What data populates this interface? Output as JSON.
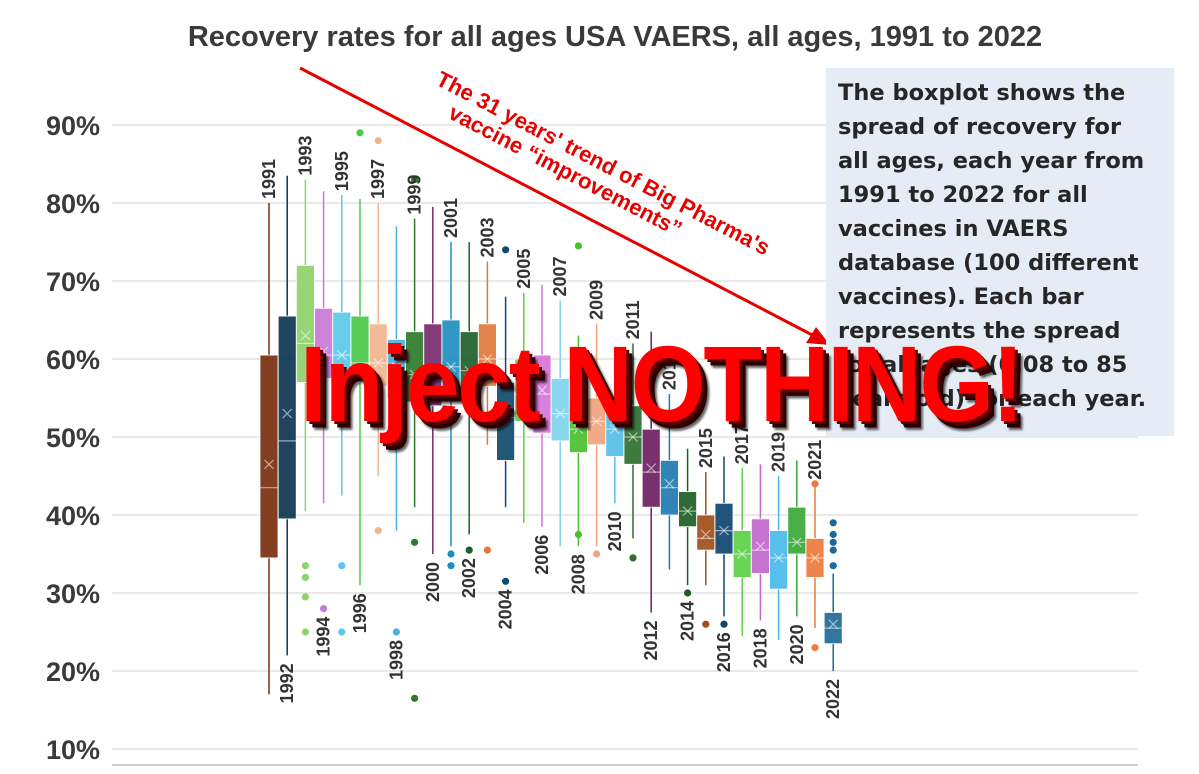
{
  "chart_data": {
    "type": "boxplot",
    "title": "Recovery rates for all ages USA VAERS, all ages,  1991 to 2022",
    "y_unit": "%",
    "ylim": [
      10,
      92
    ],
    "y_ticks": [
      "10%",
      "20%",
      "30%",
      "40%",
      "50%",
      "60%",
      "70%",
      "80%",
      "90%"
    ],
    "grid": true,
    "series": [
      {
        "year": "1991",
        "color": "#7a2e0e",
        "min": 17,
        "q1": 34.5,
        "median": 43.5,
        "mean": 46.5,
        "q3": 60.5,
        "max": 80,
        "outliers": []
      },
      {
        "year": "1992",
        "color": "#0d3550",
        "min": 22,
        "q1": 39.5,
        "median": 49.5,
        "mean": 53,
        "q3": 65.5,
        "max": 83.5,
        "outliers": []
      },
      {
        "year": "1993",
        "color": "#8fd16a",
        "min": 40.5,
        "q1": 57,
        "median": 62,
        "mean": 63,
        "q3": 72,
        "max": 83,
        "outliers": [
          33.5,
          32,
          29.5,
          25
        ]
      },
      {
        "year": "1994",
        "color": "#c77ad6",
        "min": 41.5,
        "q1": 57.5,
        "median": 60.5,
        "mean": 61,
        "q3": 66.5,
        "max": 81.5,
        "outliers": [
          28
        ]
      },
      {
        "year": "1995",
        "color": "#5bc8e8",
        "min": 42.5,
        "q1": 58,
        "median": 60.5,
        "mean": 60.5,
        "q3": 66,
        "max": 81,
        "outliers": [
          33.5,
          25
        ]
      },
      {
        "year": "1996",
        "color": "#4cc94a",
        "min": 31,
        "q1": 57,
        "median": 59.5,
        "mean": 58.5,
        "q3": 65.5,
        "max": 80.5,
        "outliers": [
          89
        ]
      },
      {
        "year": "1997",
        "color": "#f2b48f",
        "min": 45,
        "q1": 56.5,
        "median": 59.5,
        "mean": 59.5,
        "q3": 64.5,
        "max": 80,
        "outliers": [
          88,
          38
        ]
      },
      {
        "year": "1998",
        "color": "#4fb0da",
        "min": 38,
        "q1": 55,
        "median": 58.5,
        "mean": 59,
        "q3": 62.5,
        "max": 77,
        "outliers": [
          25
        ]
      },
      {
        "year": "1999",
        "color": "#2f7a2c",
        "min": 41,
        "q1": 54.5,
        "median": 58,
        "mean": 58,
        "q3": 63.5,
        "max": 78,
        "outliers": [
          83,
          36.5,
          16.5
        ]
      },
      {
        "year": "2000",
        "color": "#7a2a6e",
        "min": 35,
        "q1": 54,
        "median": 58,
        "mean": 58,
        "q3": 64.5,
        "max": 79.5,
        "outliers": []
      },
      {
        "year": "2001",
        "color": "#1e8fbd",
        "min": 36,
        "q1": 55,
        "median": 59,
        "mean": 59,
        "q3": 65,
        "max": 75,
        "outliers": [
          35,
          33.5
        ]
      },
      {
        "year": "2002",
        "color": "#1f5e2e",
        "min": 37.5,
        "q1": 54.5,
        "median": 58.5,
        "mean": 58.5,
        "q3": 63.5,
        "max": 75,
        "outliers": [
          35.5
        ]
      },
      {
        "year": "2003",
        "color": "#e0783c",
        "min": 49,
        "q1": 56.5,
        "median": 60,
        "mean": 60,
        "q3": 64.5,
        "max": 72.5,
        "outliers": [
          35.5
        ]
      },
      {
        "year": "2004",
        "color": "#0f4b6e",
        "min": 41,
        "q1": 47,
        "median": 52.5,
        "mean": 53,
        "q3": 57,
        "max": 68,
        "outliers": [
          74,
          31.5
        ]
      },
      {
        "year": "2005",
        "color": "#5ed040",
        "min": 39,
        "q1": 52,
        "median": 55.5,
        "mean": 56,
        "q3": 60,
        "max": 68.5,
        "outliers": []
      },
      {
        "year": "2006",
        "color": "#d674d9",
        "min": 38.5,
        "q1": 50.5,
        "median": 55.5,
        "mean": 56,
        "q3": 60.5,
        "max": 69.5,
        "outliers": []
      },
      {
        "year": "2007",
        "color": "#7fd4ee",
        "min": 36,
        "q1": 49.5,
        "median": 53,
        "mean": 53,
        "q3": 57.5,
        "max": 67.5,
        "outliers": []
      },
      {
        "year": "2008",
        "color": "#4cbf30",
        "min": 36,
        "q1": 48,
        "median": 51,
        "mean": 51,
        "q3": 54,
        "max": 63,
        "outliers": [
          74.5,
          37.5
        ]
      },
      {
        "year": "2009",
        "color": "#f0a37c",
        "min": 36,
        "q1": 49,
        "median": 52,
        "mean": 52,
        "q3": 55,
        "max": 64.5,
        "outliers": [
          35
        ]
      },
      {
        "year": "2010",
        "color": "#56bfe8",
        "min": 41.5,
        "q1": 47.5,
        "median": 51,
        "mean": 51,
        "q3": 54.5,
        "max": 60.5,
        "outliers": []
      },
      {
        "year": "2011",
        "color": "#2e6e2e",
        "min": 37,
        "q1": 46.5,
        "median": 50,
        "mean": 50,
        "q3": 54,
        "max": 62,
        "outliers": [
          34.5
        ]
      },
      {
        "year": "2012",
        "color": "#6e1e62",
        "min": 27.5,
        "q1": 41,
        "median": 45.5,
        "mean": 46,
        "q3": 51,
        "max": 63.5,
        "outliers": []
      },
      {
        "year": "2013",
        "color": "#1e7ab0",
        "min": 33,
        "q1": 40,
        "median": 43.5,
        "mean": 44,
        "q3": 47,
        "max": 55.5,
        "outliers": []
      },
      {
        "year": "2014",
        "color": "#1e5e24",
        "min": 31,
        "q1": 38.5,
        "median": 40.5,
        "mean": 40.5,
        "q3": 43,
        "max": 48.5,
        "outliers": [
          30
        ]
      },
      {
        "year": "2015",
        "color": "#a04e18",
        "min": 31,
        "q1": 35.5,
        "median": 37,
        "mean": 37.5,
        "q3": 40,
        "max": 45.5,
        "outliers": [
          26
        ]
      },
      {
        "year": "2016",
        "color": "#0f4470",
        "min": 27,
        "q1": 35,
        "median": 38,
        "mean": 38,
        "q3": 41.5,
        "max": 47.5,
        "outliers": [
          26
        ]
      },
      {
        "year": "2017",
        "color": "#5bd048",
        "min": 24.5,
        "q1": 32,
        "median": 35,
        "mean": 35,
        "q3": 38,
        "max": 46,
        "outliers": []
      },
      {
        "year": "2018",
        "color": "#c266cc",
        "min": 26.5,
        "q1": 32.5,
        "median": 35.5,
        "mean": 36,
        "q3": 39.5,
        "max": 46.5,
        "outliers": []
      },
      {
        "year": "2019",
        "color": "#48bae8",
        "min": 24,
        "q1": 30.5,
        "median": 34.5,
        "mean": 34.5,
        "q3": 38,
        "max": 45,
        "outliers": []
      },
      {
        "year": "2020",
        "color": "#38a83a",
        "min": 27,
        "q1": 35,
        "median": 36.5,
        "mean": 36.5,
        "q3": 41,
        "max": 47,
        "outliers": []
      },
      {
        "year": "2021",
        "color": "#ec7a3c",
        "min": 25.5,
        "q1": 32,
        "median": 34.5,
        "mean": 34.5,
        "q3": 37,
        "max": 44,
        "outliers": [
          44,
          23
        ]
      },
      {
        "year": "2022",
        "color": "#1e6a96",
        "min": 20,
        "q1": 23.5,
        "median": 25.5,
        "mean": 26,
        "q3": 27.5,
        "max": 32.5,
        "outliers": [
          39,
          37.5,
          36.5,
          35.5,
          33.5
        ]
      }
    ],
    "arrow_annotation": {
      "line1": "The 31 years' trend of Big Pharma's",
      "line2": "vaccine “improvements”",
      "color": "#e60000"
    }
  },
  "note_box": {
    "text": "The boxplot shows the\nspread of recovery for\nall ages, each year from\n1991 to 2022 for all\nvaccines in VAERS\ndatabase (100 different\nvaccines). Each bar\nrepresents the spread\nfor all ages (0.08 to 85\nyears old) for each year.",
    "background": "#e6ecf5"
  },
  "overlay": {
    "text": "Inject NOTHING!",
    "color": "#ff0000"
  }
}
